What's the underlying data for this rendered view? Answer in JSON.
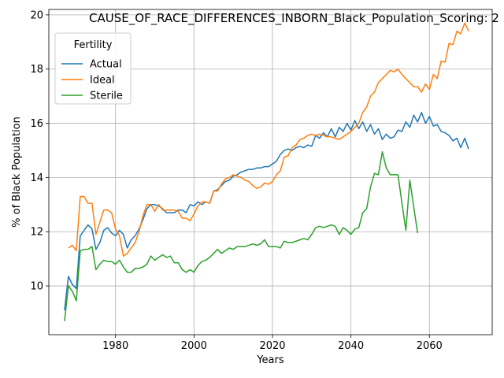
{
  "chart_data": {
    "type": "line",
    "title": "CAUSE_OF_RACE_DIFFERENCES_INBORN_Black_Population_Scoring: 2",
    "xlabel": "Years",
    "ylabel": "% of Black Population",
    "xlim": [
      1963,
      2076
    ],
    "ylim": [
      8.2,
      20.2
    ],
    "xticks": [
      1980,
      2000,
      2020,
      2040,
      2060
    ],
    "yticks": [
      10,
      12,
      14,
      16,
      18,
      20
    ],
    "grid": true,
    "legend": {
      "title": "Fertility",
      "placement": "top-left"
    },
    "series": [
      {
        "name": "Actual",
        "color": "#1f77b4",
        "x": [
          1967,
          1968,
          1969,
          1970,
          1971,
          1972,
          1973,
          1974,
          1975,
          1976,
          1977,
          1978,
          1979,
          1980,
          1981,
          1982,
          1983,
          1984,
          1985,
          1986,
          1987,
          1988,
          1989,
          1990,
          1991,
          1992,
          1993,
          1994,
          1995,
          1996,
          1997,
          1998,
          1999,
          2000,
          2001,
          2002,
          2003,
          2004,
          2005,
          2006,
          2007,
          2008,
          2009,
          2010,
          2011,
          2012,
          2013,
          2014,
          2015,
          2016,
          2017,
          2018,
          2019,
          2020,
          2021,
          2022,
          2023,
          2024,
          2025,
          2026,
          2027,
          2028,
          2029,
          2030,
          2031,
          2032,
          2033,
          2034,
          2035,
          2036,
          2037,
          2038,
          2039,
          2040,
          2041,
          2042,
          2043,
          2044,
          2045,
          2046,
          2047,
          2048,
          2049,
          2050,
          2051,
          2052,
          2053,
          2054,
          2055,
          2056,
          2057,
          2058,
          2059,
          2060,
          2061,
          2062,
          2063,
          2064,
          2065,
          2066,
          2067,
          2068,
          2069,
          2070
        ],
        "y": [
          9.1,
          10.35,
          10.05,
          9.9,
          11.85,
          12.05,
          12.25,
          12.1,
          11.35,
          11.6,
          12.05,
          12.15,
          11.95,
          11.85,
          12.05,
          11.9,
          11.4,
          11.7,
          11.85,
          12.1,
          12.45,
          12.85,
          13.0,
          13.0,
          12.95,
          12.85,
          12.7,
          12.7,
          12.7,
          12.8,
          12.8,
          12.7,
          13.0,
          12.95,
          13.1,
          13.0,
          13.1,
          13.05,
          13.5,
          13.55,
          13.7,
          13.85,
          13.9,
          14.05,
          14.1,
          14.2,
          14.25,
          14.3,
          14.3,
          14.35,
          14.35,
          14.4,
          14.4,
          14.5,
          14.6,
          14.85,
          15.0,
          15.05,
          15.0,
          15.1,
          15.15,
          15.1,
          15.2,
          15.15,
          15.55,
          15.45,
          15.65,
          15.5,
          15.8,
          15.5,
          15.85,
          15.7,
          16.0,
          15.75,
          16.1,
          15.8,
          16.05,
          15.7,
          15.95,
          15.6,
          15.8,
          15.4,
          15.6,
          15.45,
          15.5,
          15.75,
          15.7,
          16.05,
          15.85,
          16.3,
          16.05,
          16.4,
          16.0,
          16.25,
          15.9,
          15.95,
          15.7,
          15.65,
          15.55,
          15.35,
          15.45,
          15.1,
          15.45,
          15.05
        ]
      },
      {
        "name": "Ideal",
        "color": "#ff7f0e",
        "x": [
          1968,
          1969,
          1970,
          1971,
          1972,
          1973,
          1974,
          1975,
          1976,
          1977,
          1978,
          1979,
          1980,
          1981,
          1982,
          1983,
          1984,
          1985,
          1986,
          1987,
          1988,
          1989,
          1990,
          1991,
          1992,
          1993,
          1994,
          1995,
          1996,
          1997,
          1998,
          1999,
          2000,
          2001,
          2002,
          2003,
          2004,
          2005,
          2006,
          2007,
          2008,
          2009,
          2010,
          2011,
          2012,
          2013,
          2014,
          2015,
          2016,
          2017,
          2018,
          2019,
          2020,
          2021,
          2022,
          2023,
          2024,
          2025,
          2026,
          2027,
          2028,
          2029,
          2030,
          2031,
          2032,
          2033,
          2034,
          2035,
          2036,
          2037,
          2038,
          2039,
          2040,
          2041,
          2042,
          2043,
          2044,
          2045,
          2046,
          2047,
          2048,
          2049,
          2050,
          2051,
          2052,
          2053,
          2054,
          2055,
          2056,
          2057,
          2058,
          2059,
          2060,
          2061,
          2062,
          2063,
          2064,
          2065,
          2066,
          2067,
          2068,
          2069,
          2070
        ],
        "y": [
          11.4,
          11.5,
          11.3,
          13.3,
          13.3,
          13.05,
          13.05,
          11.9,
          12.35,
          12.8,
          12.8,
          12.7,
          12.1,
          11.85,
          11.1,
          11.2,
          11.4,
          11.6,
          12.0,
          12.6,
          13.0,
          13.0,
          12.75,
          13.0,
          12.8,
          12.8,
          12.8,
          12.8,
          12.75,
          12.5,
          12.5,
          12.4,
          12.65,
          12.95,
          13.1,
          13.1,
          13.05,
          13.5,
          13.5,
          13.75,
          13.95,
          14.0,
          14.1,
          14.05,
          14.0,
          13.9,
          13.85,
          13.7,
          13.6,
          13.65,
          13.8,
          13.75,
          13.85,
          14.1,
          14.25,
          14.75,
          14.8,
          15.1,
          15.2,
          15.4,
          15.45,
          15.55,
          15.6,
          15.55,
          15.6,
          15.55,
          15.5,
          15.5,
          15.45,
          15.4,
          15.5,
          15.6,
          15.7,
          15.85,
          16.0,
          16.4,
          16.6,
          17.0,
          17.15,
          17.5,
          17.65,
          17.8,
          17.95,
          17.9,
          18.0,
          17.8,
          17.65,
          17.5,
          17.35,
          17.35,
          17.15,
          17.45,
          17.25,
          17.8,
          17.65,
          18.3,
          18.25,
          18.95,
          18.9,
          19.4,
          19.3,
          19.7,
          19.4
        ]
      },
      {
        "name": "Sterile",
        "color": "#2ca02c",
        "x": [
          1967,
          1968,
          1969,
          1970,
          1971,
          1972,
          1973,
          1974,
          1975,
          1976,
          1977,
          1978,
          1979,
          1980,
          1981,
          1982,
          1983,
          1984,
          1985,
          1986,
          1987,
          1988,
          1989,
          1990,
          1991,
          1992,
          1993,
          1994,
          1995,
          1996,
          1997,
          1998,
          1999,
          2000,
          2001,
          2002,
          2003,
          2004,
          2005,
          2006,
          2007,
          2008,
          2009,
          2010,
          2011,
          2012,
          2013,
          2014,
          2015,
          2016,
          2017,
          2018,
          2019,
          2020,
          2021,
          2022,
          2023,
          2024,
          2025,
          2026,
          2027,
          2028,
          2029,
          2030,
          2031,
          2032,
          2033,
          2034,
          2035,
          2036,
          2037,
          2038,
          2039,
          2040,
          2041,
          2042,
          2043,
          2044,
          2045,
          2046,
          2047,
          2048,
          2049,
          2050,
          2051,
          2052,
          2053,
          2054,
          2055,
          2056,
          2057
        ],
        "y": [
          8.7,
          10.0,
          9.8,
          9.45,
          11.3,
          11.35,
          11.35,
          11.45,
          10.6,
          10.8,
          10.95,
          10.9,
          10.9,
          10.8,
          10.95,
          10.7,
          10.5,
          10.5,
          10.65,
          10.65,
          10.7,
          10.8,
          11.1,
          10.95,
          11.05,
          11.15,
          11.05,
          11.1,
          10.85,
          10.85,
          10.6,
          10.5,
          10.6,
          10.5,
          10.75,
          10.9,
          10.95,
          11.05,
          11.2,
          11.35,
          11.2,
          11.3,
          11.4,
          11.35,
          11.45,
          11.45,
          11.45,
          11.5,
          11.55,
          11.5,
          11.55,
          11.7,
          11.45,
          11.45,
          11.45,
          11.4,
          11.65,
          11.6,
          11.6,
          11.65,
          11.7,
          11.75,
          11.7,
          11.9,
          12.15,
          12.2,
          12.15,
          12.2,
          12.25,
          12.2,
          11.9,
          12.15,
          12.05,
          11.9,
          12.1,
          12.15,
          12.7,
          12.85,
          13.65,
          14.15,
          14.1,
          14.95,
          14.35,
          14.1,
          14.1,
          14.1,
          13.05,
          12.05,
          13.9,
          12.9,
          11.95
        ]
      }
    ]
  }
}
